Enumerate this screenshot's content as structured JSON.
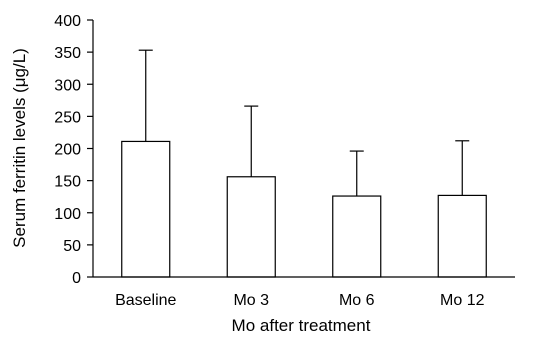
{
  "chart_data": {
    "type": "bar",
    "categories": [
      "Baseline",
      "Mo 3",
      "Mo 6",
      "Mo 12"
    ],
    "values": [
      211,
      156,
      126,
      127
    ],
    "error_upper": [
      353,
      266,
      196,
      212
    ],
    "xlabel": "Mo after treatment",
    "ylabel": "Serum ferritin levels (μg/L)",
    "ylim": [
      0,
      400
    ],
    "yticks": [
      0,
      50,
      100,
      150,
      200,
      250,
      300,
      350,
      400
    ],
    "grid": false,
    "colors": {
      "bar_fill": "#ffffff",
      "bar_stroke": "#000000",
      "axis": "#000000"
    }
  }
}
